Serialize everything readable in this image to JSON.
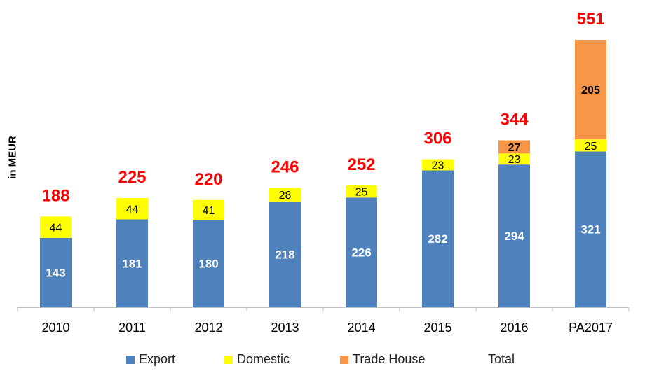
{
  "chart_data": {
    "type": "bar",
    "stacked": true,
    "categories": [
      "2010",
      "2011",
      "2012",
      "2013",
      "2014",
      "2015",
      "2016",
      "PA2017"
    ],
    "series": [
      {
        "name": "Export",
        "color": "#4f81bd",
        "values": [
          143,
          181,
          180,
          218,
          226,
          282,
          294,
          321
        ]
      },
      {
        "name": "Domestic",
        "color": "#ffff00",
        "values": [
          44,
          44,
          41,
          28,
          25,
          23,
          23,
          25
        ]
      },
      {
        "name": "Trade House",
        "color": "#f79646",
        "values": [
          0,
          0,
          0,
          0,
          0,
          0,
          27,
          205
        ]
      }
    ],
    "totals": {
      "name": "Total",
      "color": "#ff0000",
      "values": [
        188,
        225,
        220,
        246,
        252,
        306,
        344,
        551
      ]
    },
    "ylabel": "in MEUR",
    "xlabel": "",
    "title": "",
    "ylim": [
      0,
      551
    ],
    "grid": false,
    "legend_position": "bottom"
  }
}
